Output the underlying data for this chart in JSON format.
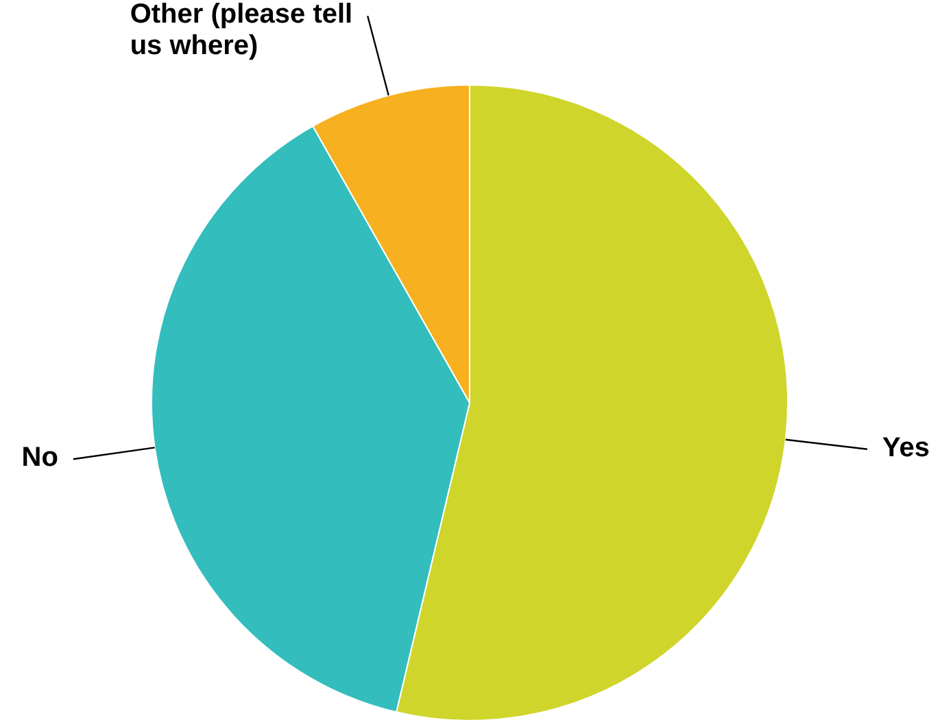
{
  "chart_data": {
    "type": "pie",
    "categories": [
      "Yes",
      "No",
      "Other (please tell us where)"
    ],
    "values": [
      53.7,
      38.1,
      8.2
    ],
    "colors": [
      "#cfd52a",
      "#33bdbd",
      "#f7b01f"
    ]
  }
}
